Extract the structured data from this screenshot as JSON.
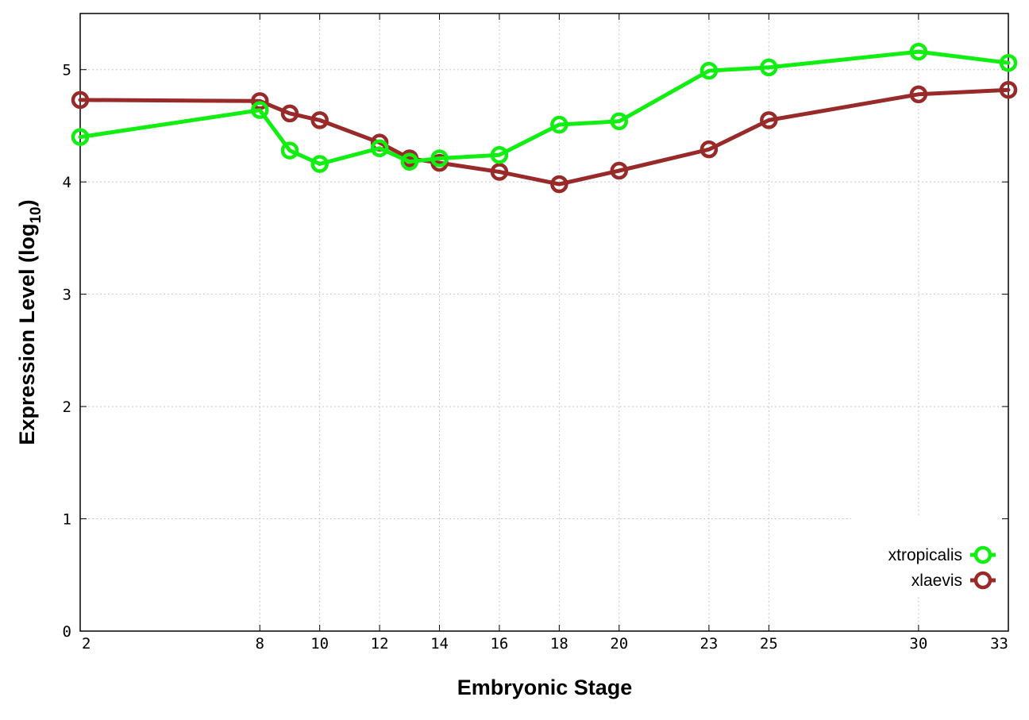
{
  "chart_data": {
    "type": "line",
    "xlabel": "Embryonic Stage",
    "ylabel": "Expression Level (log",
    "ylabel_subscript": "10",
    "ylabel_close": ")",
    "x_ticks": [
      2,
      8,
      10,
      12,
      14,
      16,
      18,
      20,
      23,
      25,
      30,
      33
    ],
    "y_ticks": [
      0,
      1,
      2,
      3,
      4,
      5
    ],
    "xlim": [
      2,
      33
    ],
    "ylim": [
      0,
      5.5
    ],
    "grid": true,
    "legend_position": "bottom-right",
    "series": [
      {
        "name": "xtropicalis",
        "color": "#11ee11",
        "x": [
          2,
          8,
          9,
          10,
          12,
          13,
          14,
          16,
          18,
          20,
          23,
          25,
          30,
          33
        ],
        "y": [
          4.4,
          4.64,
          4.28,
          4.16,
          4.3,
          4.18,
          4.21,
          4.24,
          4.51,
          4.54,
          4.99,
          5.02,
          5.16,
          5.06
        ]
      },
      {
        "name": "xlaevis",
        "color": "#992a2a",
        "x": [
          2,
          8,
          9,
          10,
          12,
          13,
          14,
          16,
          18,
          20,
          23,
          25,
          30,
          33
        ],
        "y": [
          4.73,
          4.72,
          4.61,
          4.55,
          4.35,
          4.21,
          4.17,
          4.09,
          3.98,
          4.1,
          4.29,
          4.55,
          4.78,
          4.82
        ]
      }
    ]
  }
}
